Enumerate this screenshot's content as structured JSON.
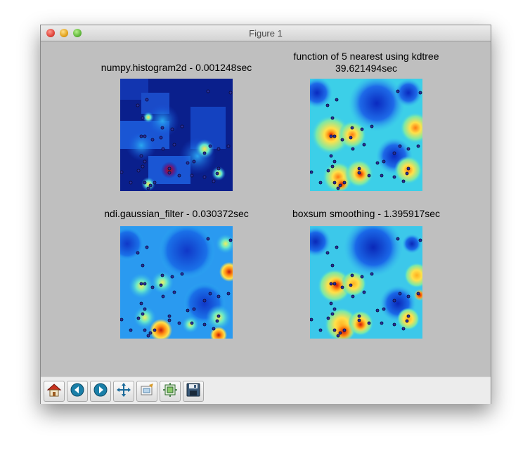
{
  "window": {
    "title": "Figure 1"
  },
  "plots": [
    {
      "title": "numpy.histogram2d - 0.001248sec"
    },
    {
      "title_line1": "function of 5 nearest using kdtree",
      "title_line2": "39.621494sec"
    },
    {
      "title": "ndi.gaussian_filter - 0.030372sec"
    },
    {
      "title": "boxsum smoothing - 1.395917sec"
    }
  ],
  "toolbar": {
    "buttons": [
      "home-icon",
      "back-icon",
      "forward-icon",
      "pan-icon",
      "subplots-icon",
      "zoom-to-rect-icon",
      "save-icon"
    ]
  },
  "colors": {
    "window_bg": "#bfbfbf",
    "toolbar_bg": "#ececec",
    "point": "#2a2fa0",
    "colormap": "jet"
  }
}
